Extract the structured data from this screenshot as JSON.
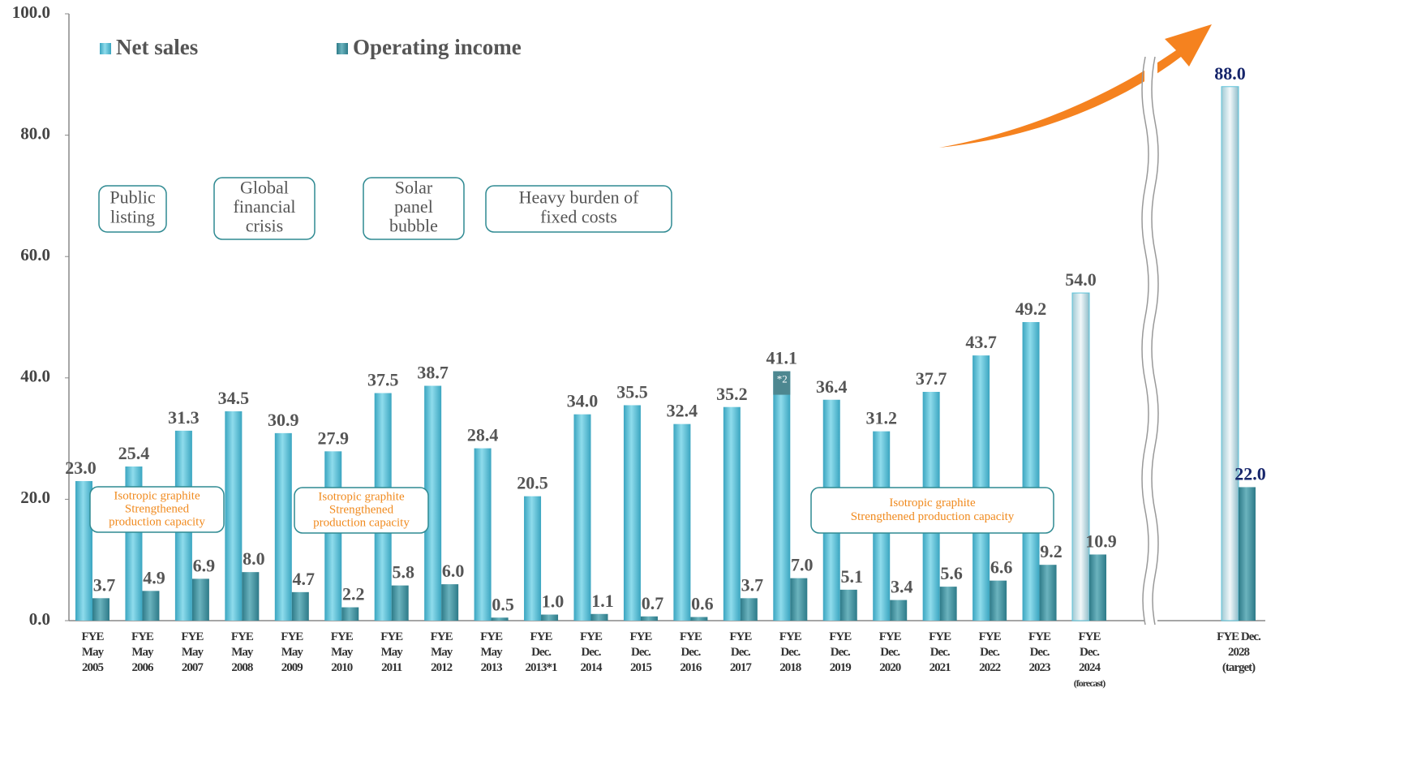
{
  "chart_data": {
    "type": "bar",
    "categories": [
      "FYE\nMay\n2005",
      "FYE\nMay\n2006",
      "FYE\nMay\n2007",
      "FYE\nMay\n2008",
      "FYE\nMay\n2009",
      "FYE\nMay\n2010",
      "FYE\nMay\n2011",
      "FYE\nMay\n2012",
      "FYE\nMay\n2013",
      "FYE\nDec.\n2013*1",
      "FYE\nDec.\n2014",
      "FYE\nDec.\n2015",
      "FYE\nDec.\n2016",
      "FYE\nDec.\n2017",
      "FYE\nDec.\n2018",
      "FYE\nDec.\n2019",
      "FYE\nDec.\n2020",
      "FYE\nDec.\n2021",
      "FYE\nDec.\n2022",
      "FYE\nDec.\n2023",
      "FYE\nDec.\n2024\n(forecast)",
      "FYE Dec.\n2028\n(target)"
    ],
    "series": [
      {
        "name": "Net sales",
        "color": "#5cc3da",
        "values": [
          23.0,
          25.4,
          31.3,
          34.5,
          30.9,
          27.9,
          37.5,
          38.7,
          28.4,
          20.5,
          34.0,
          35.5,
          32.4,
          35.2,
          41.1,
          36.4,
          31.2,
          37.7,
          43.7,
          49.2,
          54.0,
          88.0
        ],
        "value_labels": [
          "23.0",
          "25.4",
          "31.3",
          "34.5",
          "30.9",
          "27.9",
          "37.5",
          "38.7",
          "28.4",
          "20.5",
          "34.0",
          "35.5",
          "32.4",
          "35.2",
          "41.1",
          "36.4",
          "31.2",
          "37.7",
          "43.7",
          "49.2",
          "54.0",
          "88.0"
        ]
      },
      {
        "name": "Operating income",
        "color": "#3f8e9b",
        "values": [
          3.7,
          4.9,
          6.9,
          8.0,
          4.7,
          2.2,
          5.8,
          6.0,
          0.5,
          1.0,
          1.1,
          0.7,
          0.6,
          3.7,
          7.0,
          5.1,
          3.4,
          5.6,
          6.6,
          9.2,
          10.9,
          22.0
        ],
        "value_labels": [
          "3.7",
          "4.9",
          "6.9",
          "8.0",
          "4.7",
          "2.2",
          "5.8",
          "6.0",
          "0.5",
          "1.0",
          "1.1",
          "0.7",
          "0.6",
          "3.7",
          "7.0",
          "5.1",
          "3.4",
          "5.6",
          "6.6",
          "9.2",
          "10.9",
          "22.0"
        ]
      }
    ],
    "ylim": [
      0,
      100
    ],
    "yticks": [
      {
        "value": 0,
        "label": "0.0"
      },
      {
        "value": 20,
        "label": "20.0"
      },
      {
        "value": 40,
        "label": "40.0"
      },
      {
        "value": 60,
        "label": "60.0"
      },
      {
        "value": 80,
        "label": "80.0"
      },
      {
        "value": 100,
        "label": "100.0"
      }
    ],
    "annotations": [
      {
        "lines": [
          "Public",
          "listing"
        ]
      },
      {
        "lines": [
          "Global",
          "financial",
          "crisis"
        ]
      },
      {
        "lines": [
          "Solar",
          "panel",
          "bubble"
        ]
      },
      {
        "lines": [
          "Heavy burden of",
          "fixed costs"
        ]
      },
      {
        "lines": [
          "Isotropic graphite",
          "Strengthened",
          "production capacity"
        ]
      },
      {
        "lines": [
          "Isotropic graphite",
          "Strengthened",
          "production capacity"
        ]
      },
      {
        "lines": [
          "Isotropic graphite",
          "Strengthened production capacity"
        ]
      }
    ],
    "note": "*2"
  }
}
